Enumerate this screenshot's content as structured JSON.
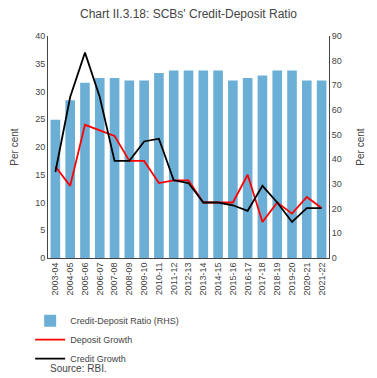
{
  "chart_data": {
    "type": "bar",
    "title": "Chart II.3.18: SCBs' Credit-Deposit Ratio",
    "categories": [
      "2003-04",
      "2004-05",
      "2005-06",
      "2006-07",
      "2007-08",
      "2008-09",
      "2009-10",
      "2010-11",
      "2011-12",
      "2012-13",
      "2013-14",
      "2014-15",
      "2015-16",
      "2016-17",
      "2017-18",
      "2018-19",
      "2019-20",
      "2020-21",
      "2021-22"
    ],
    "series": [
      {
        "name": "Credit-Deposit Ratio (RHS)",
        "type": "bar",
        "axis": "y2",
        "color": "#6baed6",
        "values": [
          56,
          64,
          71,
          73,
          73,
          72,
          72,
          75,
          76,
          76,
          76,
          76,
          72,
          73,
          74,
          76,
          76,
          72,
          72
        ]
      },
      {
        "name": "Deposit Growth",
        "type": "line",
        "color": "#ff0000",
        "values": [
          16.5,
          13.0,
          24.0,
          23.0,
          22.0,
          17.5,
          17.5,
          13.5,
          14.0,
          14.0,
          10.0,
          10.0,
          10.0,
          15.0,
          6.5,
          10.0,
          8.0,
          11.0,
          9.0
        ]
      },
      {
        "name": "Credit Growth",
        "type": "line",
        "color": "#000000",
        "values": [
          15.5,
          29.0,
          37.0,
          29.0,
          17.5,
          17.5,
          21.0,
          21.5,
          14.0,
          13.5,
          10.0,
          10.0,
          9.5,
          8.5,
          13.0,
          10.0,
          6.5,
          9.0,
          9.0
        ]
      }
    ],
    "ylabel": "Per cent",
    "y2label": "Per cent",
    "ylim": [
      0,
      40
    ],
    "yticks": [
      0,
      5,
      10,
      15,
      20,
      25,
      30,
      35,
      40
    ],
    "y2lim": [
      0,
      90
    ],
    "y2ticks": [
      0,
      10,
      20,
      30,
      40,
      50,
      60,
      70,
      80,
      90
    ],
    "grid": false,
    "legend": "bottom",
    "annotations": [
      "Source: RBI."
    ]
  }
}
